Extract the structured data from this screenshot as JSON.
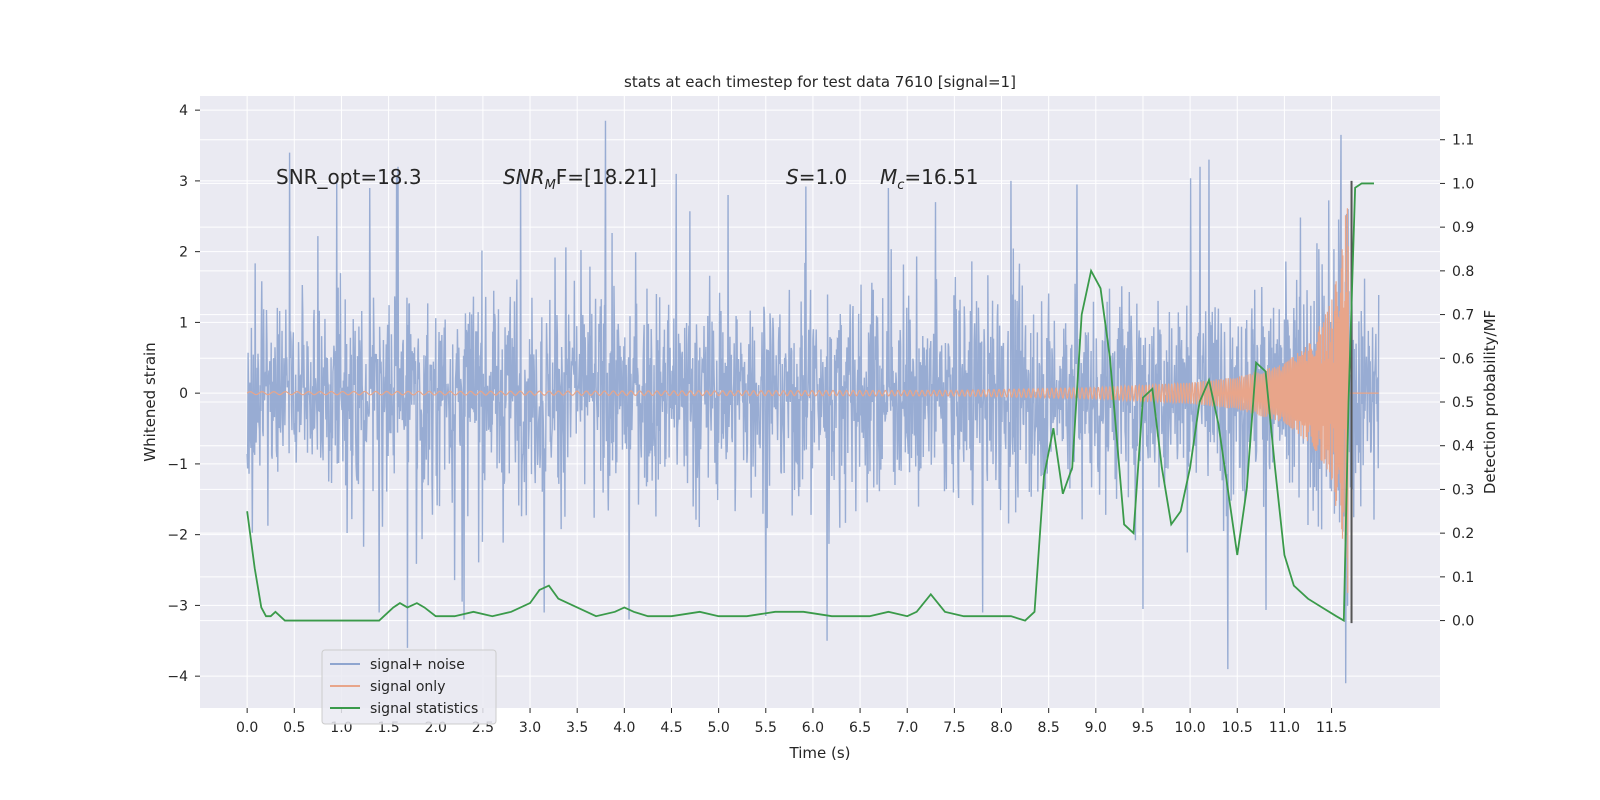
{
  "chart_data": {
    "type": "line",
    "title": "stats at each timestep for test data 7610 [signal=1]",
    "xlabel": "Time (s)",
    "ylabel": "Whitened strain",
    "ylabel_right": "Detection probability/MF",
    "xlim": [
      -0.5,
      12.65
    ],
    "ylim": [
      -4.45,
      4.2
    ],
    "ylim_right": [
      -0.2,
      1.2
    ],
    "x_ticks": [
      "0.0",
      "0.5",
      "1.0",
      "1.5",
      "2.0",
      "2.5",
      "3.0",
      "3.5",
      "4.0",
      "4.5",
      "5.0",
      "5.5",
      "6.0",
      "6.5",
      "7.0",
      "7.5",
      "8.0",
      "8.5",
      "9.0",
      "9.5",
      "10.0",
      "10.5",
      "11.0",
      "11.5"
    ],
    "y_ticks": [
      "4",
      "3",
      "2",
      "1",
      "0",
      "−1",
      "−2",
      "−3",
      "−4"
    ],
    "y_ticks_right": [
      "1.1",
      "1.0",
      "0.9",
      "0.8",
      "0.7",
      "0.6",
      "0.5",
      "0.4",
      "0.3",
      "0.2",
      "0.1",
      "0.0"
    ],
    "annotations": {
      "snr_opt": "SNR_opt=18.3",
      "snr_mf_main": "SNR",
      "snr_mf_sub": "M",
      "snr_mf_rest": "F=[18.21]",
      "s_var": "S",
      "s_val": "=1.0",
      "mc_var": "M",
      "mc_sub": "c",
      "mc_val": "=16.51"
    },
    "series": [
      {
        "name": "signal+ noise",
        "color": "#8fa5cf",
        "axis": "left",
        "description": "whitened strain with noise, t from 0.0 to 12.0 s",
        "spike_peaks": [
          {
            "t": 0.45,
            "v": 3.4
          },
          {
            "t": 0.95,
            "v": 3.0
          },
          {
            "t": 1.3,
            "v": 2.9
          },
          {
            "t": 1.6,
            "v": 3.2
          },
          {
            "t": 2.3,
            "v": 2.8
          },
          {
            "t": 2.9,
            "v": 3.1
          },
          {
            "t": 3.8,
            "v": 3.85
          },
          {
            "t": 4.55,
            "v": 3.1
          },
          {
            "t": 5.1,
            "v": 2.8
          },
          {
            "t": 6.8,
            "v": 2.9
          },
          {
            "t": 7.3,
            "v": 2.7
          },
          {
            "t": 8.1,
            "v": 3.0
          },
          {
            "t": 8.8,
            "v": 2.95
          },
          {
            "t": 10.2,
            "v": 3.3
          },
          {
            "t": 11.6,
            "v": 3.65
          }
        ],
        "spike_troughs": [
          {
            "t": 1.4,
            "v": -3.1
          },
          {
            "t": 1.7,
            "v": -3.6
          },
          {
            "t": 2.3,
            "v": -3.2
          },
          {
            "t": 3.15,
            "v": -3.1
          },
          {
            "t": 4.05,
            "v": -3.2
          },
          {
            "t": 5.5,
            "v": -3.15
          },
          {
            "t": 6.15,
            "v": -3.5
          },
          {
            "t": 7.8,
            "v": -3.1
          },
          {
            "t": 9.5,
            "v": -3.05
          },
          {
            "t": 10.4,
            "v": -3.9
          },
          {
            "t": 11.65,
            "v": -4.1
          }
        ]
      },
      {
        "name": "signal only",
        "color": "#e8a58a",
        "axis": "left",
        "description": "chirp with growing amplitude, merger near t=11.68 s",
        "amplitude_points": [
          {
            "t": 0.0,
            "v": 0.02
          },
          {
            "t": 7.5,
            "v": 0.04
          },
          {
            "t": 9.0,
            "v": 0.08
          },
          {
            "t": 10.0,
            "v": 0.15
          },
          {
            "t": 10.5,
            "v": 0.23
          },
          {
            "t": 11.0,
            "v": 0.42
          },
          {
            "t": 11.3,
            "v": 0.75
          },
          {
            "t": 11.5,
            "v": 1.3
          },
          {
            "t": 11.62,
            "v": 2.1
          },
          {
            "t": 11.68,
            "v": 3.0
          }
        ]
      },
      {
        "name": "signal statistics",
        "color": "#3a9a4a",
        "axis": "right",
        "x": [
          0.0,
          0.08,
          0.15,
          0.2,
          0.25,
          0.3,
          0.4,
          0.5,
          0.6,
          0.8,
          1.0,
          1.2,
          1.4,
          1.55,
          1.62,
          1.7,
          1.8,
          1.88,
          2.0,
          2.2,
          2.4,
          2.6,
          2.8,
          3.0,
          3.1,
          3.2,
          3.3,
          3.5,
          3.7,
          3.9,
          4.0,
          4.1,
          4.25,
          4.5,
          4.8,
          5.0,
          5.3,
          5.6,
          5.9,
          6.2,
          6.4,
          6.6,
          6.8,
          7.0,
          7.1,
          7.25,
          7.4,
          7.6,
          7.9,
          8.1,
          8.25,
          8.35,
          8.45,
          8.55,
          8.65,
          8.75,
          8.85,
          8.95,
          9.05,
          9.15,
          9.3,
          9.4,
          9.5,
          9.6,
          9.7,
          9.8,
          9.9,
          10.0,
          10.1,
          10.2,
          10.3,
          10.4,
          10.5,
          10.6,
          10.7,
          10.8,
          10.9,
          11.0,
          11.1,
          11.25,
          11.4,
          11.55,
          11.63,
          11.68,
          11.75,
          11.82,
          11.95
        ],
        "y": [
          0.25,
          0.12,
          0.03,
          0.01,
          0.01,
          0.02,
          0.0,
          0.0,
          0.0,
          0.0,
          0.0,
          0.0,
          0.0,
          0.03,
          0.04,
          0.03,
          0.04,
          0.03,
          0.01,
          0.01,
          0.02,
          0.01,
          0.02,
          0.04,
          0.07,
          0.08,
          0.05,
          0.03,
          0.01,
          0.02,
          0.03,
          0.02,
          0.01,
          0.01,
          0.02,
          0.01,
          0.01,
          0.02,
          0.02,
          0.01,
          0.01,
          0.01,
          0.02,
          0.01,
          0.02,
          0.06,
          0.02,
          0.01,
          0.01,
          0.01,
          0.0,
          0.02,
          0.33,
          0.44,
          0.29,
          0.35,
          0.7,
          0.8,
          0.76,
          0.6,
          0.22,
          0.2,
          0.51,
          0.53,
          0.35,
          0.22,
          0.25,
          0.35,
          0.5,
          0.55,
          0.45,
          0.3,
          0.15,
          0.3,
          0.59,
          0.57,
          0.35,
          0.15,
          0.08,
          0.05,
          0.03,
          0.01,
          0.0,
          0.5,
          0.99,
          1.0,
          1.0
        ]
      }
    ],
    "legend_position": "lower-left"
  }
}
